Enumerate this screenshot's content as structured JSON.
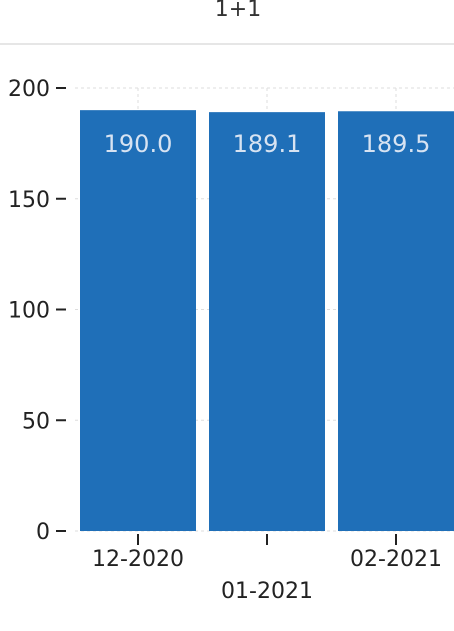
{
  "header": {
    "title": "1+1"
  },
  "chart_data": {
    "type": "bar",
    "categories": [
      "12-2020",
      "01-2021",
      "02-2021"
    ],
    "values": [
      190.0,
      189.1,
      189.5
    ],
    "value_labels": [
      "190.0",
      "189.1",
      "189.5"
    ],
    "title": "1+1",
    "xlabel": "",
    "ylabel": "",
    "ylim": [
      0,
      200
    ],
    "yticks": [
      0,
      50,
      100,
      150,
      200
    ],
    "ytick_labels": [
      "0",
      "50",
      "100",
      "150",
      "200"
    ],
    "grid": true,
    "legend": "none",
    "colors": {
      "bar": "#1f6fb8",
      "value_label": "#d7e3f2",
      "grid": "#dddddd",
      "axis": "#222222",
      "header_rule": "#e6e6e6"
    }
  }
}
